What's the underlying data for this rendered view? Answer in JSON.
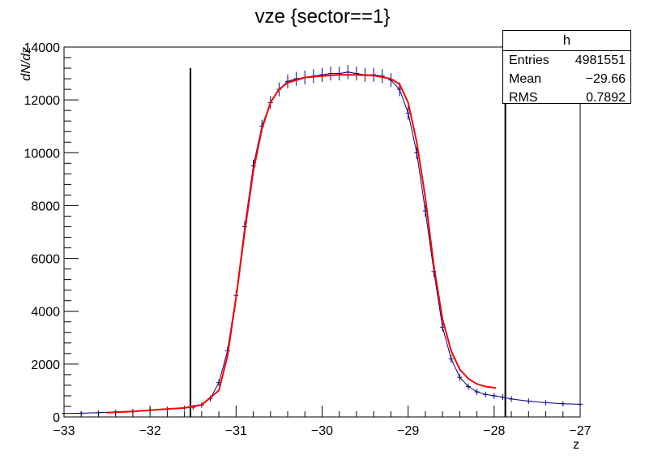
{
  "chart_data": {
    "type": "histogram",
    "title": "vze {sector==1}",
    "xlabel": "z",
    "ylabel": "dN/dz",
    "xlim": [
      -33,
      -27
    ],
    "ylim": [
      0,
      14000
    ],
    "xticks": [
      -33,
      -32,
      -31,
      -30,
      -29,
      -28,
      -27
    ],
    "xtick_labels": [
      "−33",
      "−32",
      "−31",
      "−30",
      "−29",
      "−28",
      "−27"
    ],
    "yticks": [
      0,
      2000,
      4000,
      6000,
      8000,
      10000,
      12000,
      14000
    ],
    "ytick_labels": [
      "0",
      "2000",
      "4000",
      "6000",
      "8000",
      "10000",
      "12000",
      "14000"
    ],
    "series": [
      {
        "style": "points with error bars",
        "color": "#000080",
        "x": [
          -33.0,
          -32.8,
          -32.6,
          -32.4,
          -32.2,
          -32.0,
          -31.8,
          -31.6,
          -31.5,
          -31.4,
          -31.3,
          -31.2,
          -31.1,
          -31.0,
          -30.9,
          -30.8,
          -30.7,
          -30.6,
          -30.5,
          -30.4,
          -30.3,
          -30.2,
          -30.1,
          -30.0,
          -29.9,
          -29.8,
          -29.7,
          -29.6,
          -29.5,
          -29.4,
          -29.3,
          -29.2,
          -29.1,
          -29.0,
          -28.9,
          -28.8,
          -28.7,
          -28.6,
          -28.5,
          -28.4,
          -28.3,
          -28.2,
          -28.1,
          -28.0,
          -27.9,
          -27.8,
          -27.6,
          -27.4,
          -27.2,
          -27.0
        ],
        "y": [
          130,
          140,
          160,
          190,
          220,
          260,
          300,
          340,
          370,
          450,
          700,
          1300,
          2500,
          4600,
          7200,
          9500,
          11000,
          11900,
          12400,
          12700,
          12800,
          12850,
          12900,
          12950,
          13000,
          13000,
          13050,
          13000,
          12950,
          12950,
          12900,
          12750,
          12400,
          11500,
          10000,
          7800,
          5500,
          3400,
          2200,
          1500,
          1150,
          950,
          850,
          800,
          750,
          680,
          600,
          540,
          500,
          480
        ]
      },
      {
        "style": "fit line",
        "color": "#ff0000",
        "x": [
          -32.5,
          -32.2,
          -31.9,
          -31.6,
          -31.4,
          -31.2,
          -31.1,
          -31.0,
          -30.9,
          -30.8,
          -30.7,
          -30.6,
          -30.5,
          -30.4,
          -30.2,
          -30.0,
          -29.8,
          -29.6,
          -29.4,
          -29.2,
          -29.1,
          -29.0,
          -28.9,
          -28.8,
          -28.7,
          -28.6,
          -28.5,
          -28.4,
          -28.3,
          -28.2,
          -28.1,
          -27.98
        ],
        "y": [
          160,
          210,
          280,
          340,
          460,
          1000,
          2300,
          4500,
          7000,
          9300,
          10900,
          11900,
          12400,
          12650,
          12850,
          12900,
          12950,
          12950,
          12920,
          12800,
          12600,
          11900,
          10400,
          8300,
          5700,
          3700,
          2500,
          1800,
          1450,
          1250,
          1150,
          1100
        ]
      }
    ],
    "vertical_lines": [
      -31.53,
      -27.87
    ],
    "stats": {
      "name": "h",
      "entries_label": "Entries",
      "entries": "4981551",
      "mean_label": "Mean",
      "mean": "−29.66",
      "rms_label": "RMS",
      "rms": "0.7892"
    }
  }
}
